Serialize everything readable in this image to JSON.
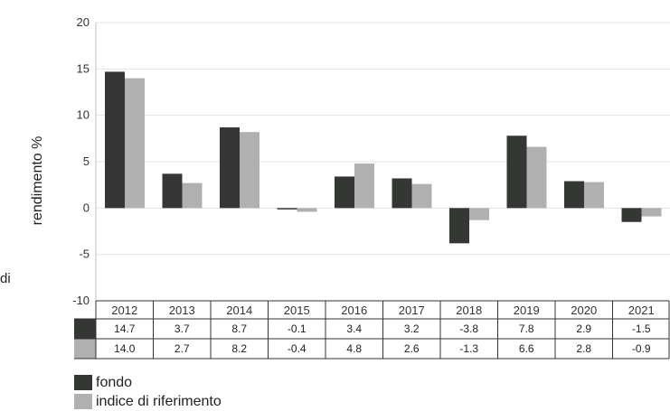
{
  "chart_data": {
    "type": "bar",
    "ylabel": "rendimento %",
    "ylim": [
      -10,
      20
    ],
    "yticks": [
      20,
      15,
      10,
      5,
      0,
      -5,
      -10
    ],
    "grid": true,
    "legend_position": "bottom-left",
    "categories": [
      "2012",
      "2013",
      "2014",
      "2015",
      "2016",
      "2017",
      "2018",
      "2019",
      "2020",
      "2021"
    ],
    "series": [
      {
        "name": "fondo",
        "color": "#353735",
        "values": [
          14.7,
          3.7,
          8.7,
          -0.1,
          3.4,
          3.2,
          -3.8,
          7.8,
          2.9,
          -1.5
        ],
        "labels": [
          "14.7",
          "3.7",
          "8.7",
          "-0.1",
          "3.4",
          "3.2",
          "-3.8",
          "7.8",
          "2.9",
          "-1.5"
        ]
      },
      {
        "name": "indice di riferimento",
        "color": "#b0b0b0",
        "values": [
          14.0,
          2.7,
          8.2,
          -0.4,
          4.8,
          2.6,
          -1.3,
          6.6,
          2.8,
          -0.9
        ],
        "labels": [
          "14.0",
          "2.7",
          "8.2",
          "-0.4",
          "4.8",
          "2.6",
          "-1.3",
          "6.6",
          "2.8",
          "-0.9"
        ]
      }
    ]
  },
  "left_fragment": "di"
}
